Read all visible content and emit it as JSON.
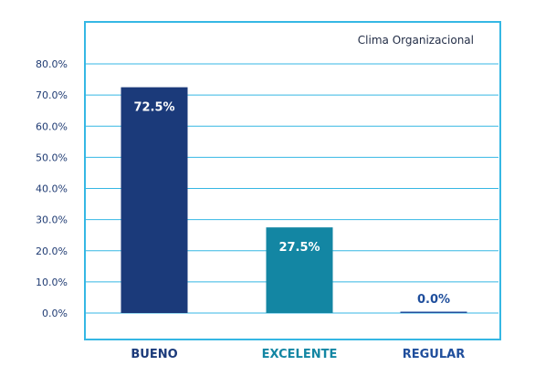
{
  "chart_data": {
    "type": "bar",
    "title": "Clima Organizacional",
    "categories": [
      "BUENO",
      "EXCELENTE",
      "REGULAR"
    ],
    "values": [
      72.5,
      27.5,
      0.0
    ],
    "data_labels": [
      "72.5%",
      "27.5%",
      "0.0%"
    ],
    "y_ticks": [
      "0.0%",
      "10.0%",
      "20.0%",
      "30.0%",
      "40.0%",
      "50.0%",
      "60.0%",
      "70.0%",
      "80.0%"
    ],
    "ylim": [
      0,
      80
    ],
    "grid": true,
    "bar_colors": [
      "#1b3a7a",
      "#1386a3",
      "#1f4e9c"
    ],
    "label_colors": [
      "#1b3a7a",
      "#1386a3",
      "#1f4e9c"
    ],
    "data_label_colors": [
      "#ffffff",
      "#ffffff",
      "#1f4e9c"
    ],
    "frame_color": "#35b7e4",
    "grid_color": "#35b7e4",
    "tick_color": "#1f3b73"
  }
}
